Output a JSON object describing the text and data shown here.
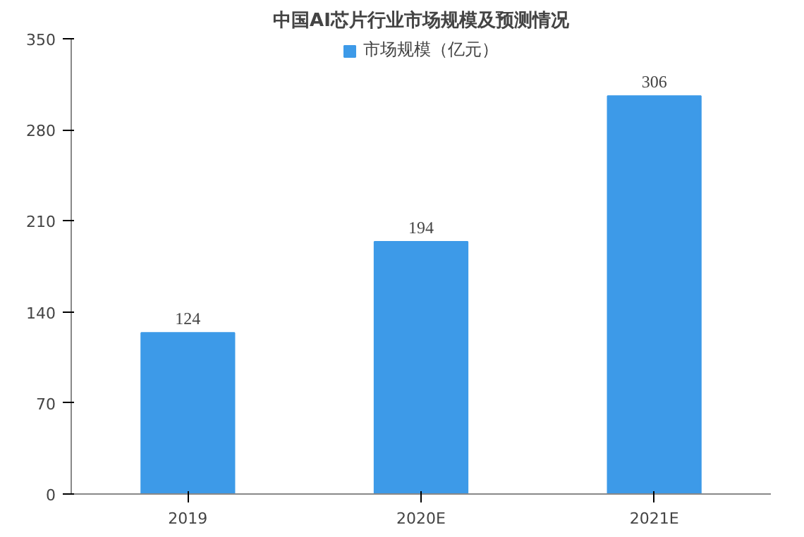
{
  "chart_data": {
    "type": "bar",
    "title": "中国AI芯片行业市场规模及预测情况",
    "categories": [
      "2019",
      "2020E",
      "2021E"
    ],
    "series": [
      {
        "name": "市场规模（亿元）",
        "color": "#3d9ae8",
        "values": [
          124,
          194,
          306
        ]
      }
    ],
    "ylim": [
      0,
      350
    ],
    "yticks": [
      0,
      70,
      140,
      210,
      280,
      350
    ],
    "grid": false,
    "legend": "top",
    "data_labels": true
  }
}
